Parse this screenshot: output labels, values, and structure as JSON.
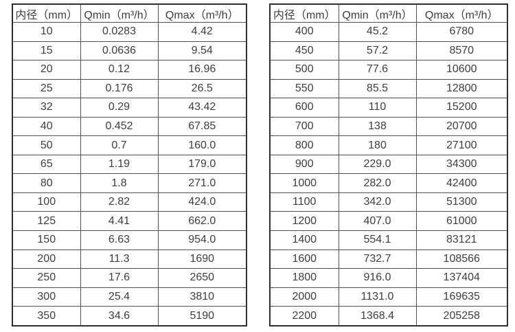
{
  "colors": {
    "text": "#3d3d3d",
    "border_inner": "#4f4f4f",
    "border_outer": "#2e2e2e",
    "background": "#ffffff"
  },
  "left_table": {
    "headers": [
      "内径（mm）",
      "Qmin（m³/h）",
      "Qmax（m³/h）"
    ],
    "rows": [
      [
        "10",
        "0.0283",
        "4.42"
      ],
      [
        "15",
        "0.0636",
        "9.54"
      ],
      [
        "20",
        "0.12",
        "16.96"
      ],
      [
        "25",
        "0.176",
        "26.5"
      ],
      [
        "32",
        "0.29",
        "43.42"
      ],
      [
        "40",
        "0.452",
        "67.85"
      ],
      [
        "50",
        "0.7",
        "160.0"
      ],
      [
        "65",
        "1.19",
        "179.0"
      ],
      [
        "80",
        "1.8",
        "271.0"
      ],
      [
        "100",
        "2.82",
        "424.0"
      ],
      [
        "125",
        "4.41",
        "662.0"
      ],
      [
        "150",
        "6.63",
        "954.0"
      ],
      [
        "200",
        "11.3",
        "1690"
      ],
      [
        "250",
        "17.6",
        "2650"
      ],
      [
        "300",
        "25.4",
        "3810"
      ],
      [
        "350",
        "34.6",
        "5190"
      ]
    ]
  },
  "right_table": {
    "headers": [
      "内径（mm）",
      "Qmin（m³/h）",
      "Qmax（m³/h）"
    ],
    "rows": [
      [
        "400",
        "45.2",
        "6780"
      ],
      [
        "450",
        "57.2",
        "8570"
      ],
      [
        "500",
        "77.6",
        "10600"
      ],
      [
        "550",
        "85.5",
        "12800"
      ],
      [
        "600",
        "110",
        "15200"
      ],
      [
        "700",
        "138",
        "20700"
      ],
      [
        "800",
        "180",
        "27100"
      ],
      [
        "900",
        "229.0",
        "34300"
      ],
      [
        "1000",
        "282.0",
        "42400"
      ],
      [
        "1100",
        "342.0",
        "51300"
      ],
      [
        "1200",
        "407.0",
        "61000"
      ],
      [
        "1400",
        "554.1",
        "83121"
      ],
      [
        "1600",
        "732.7",
        "108566"
      ],
      [
        "1800",
        "916.0",
        "137404"
      ],
      [
        "2000",
        "1131.0",
        "169635"
      ],
      [
        "2200",
        "1368.4",
        "205258"
      ]
    ]
  }
}
